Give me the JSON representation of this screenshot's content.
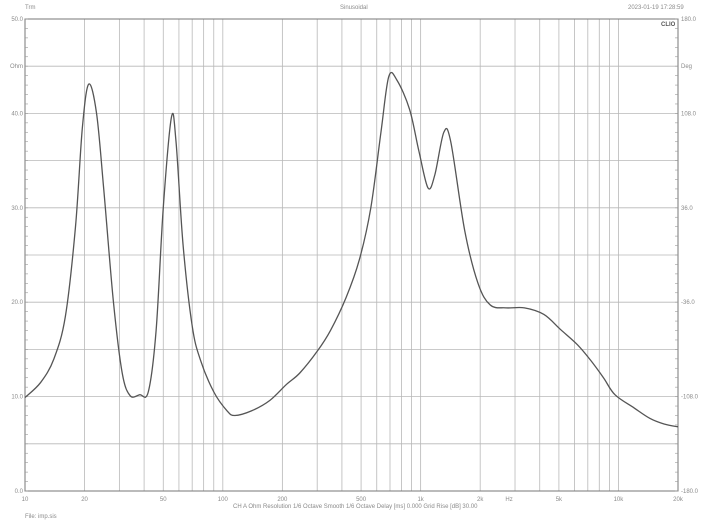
{
  "header": {
    "left_label": "Trm",
    "title": "Sinusoidal",
    "timestamp": "2023-01-19 17:28:59",
    "brand": "CLIO"
  },
  "footer": {
    "settings": "CH A   Ohm   Resolution 1/6 Octave   Smooth 1/6 Octave   Delay [ms] 0.000   Grid Rise [dB] 30.00",
    "file": "File: imp.sis"
  },
  "chart_data": {
    "type": "line",
    "title": "Sinusoidal",
    "xscale": "log",
    "xlim": [
      10,
      20000
    ],
    "ylim": [
      0,
      50
    ],
    "y2lim": [
      -180,
      180
    ],
    "grid": true,
    "ylabel": "Ohm",
    "y2label": "Deg",
    "x_tick_labels": [
      {
        "value": 10,
        "label": "10"
      },
      {
        "value": 20,
        "label": "20"
      },
      {
        "value": 50,
        "label": "50"
      },
      {
        "value": 100,
        "label": "100"
      },
      {
        "value": 200,
        "label": "200"
      },
      {
        "value": 500,
        "label": "500"
      },
      {
        "value": 1000,
        "label": "1k"
      },
      {
        "value": 2000,
        "label": "2k"
      },
      {
        "value": 2800,
        "label": "Hz"
      },
      {
        "value": 5000,
        "label": "5k"
      },
      {
        "value": 10000,
        "label": "10k"
      },
      {
        "value": 20000,
        "label": "20k"
      }
    ],
    "y_tick_labels": [
      {
        "value": 50,
        "label": "50.0"
      },
      {
        "value": 45,
        "label": "Ohm"
      },
      {
        "value": 40,
        "label": "40.0"
      },
      {
        "value": 30,
        "label": "30.0"
      },
      {
        "value": 20,
        "label": "20.0"
      },
      {
        "value": 10,
        "label": "10.0"
      },
      {
        "value": 0,
        "label": "0.0"
      }
    ],
    "y2_tick_labels": [
      {
        "value": 180,
        "label": "180.0"
      },
      {
        "value": 144,
        "label": "Deg"
      },
      {
        "value": 108,
        "label": "108.0"
      },
      {
        "value": 36,
        "label": "36.0"
      },
      {
        "value": -36,
        "label": "-36.0"
      },
      {
        "value": -108,
        "label": "-108.0"
      },
      {
        "value": -180,
        "label": "-180.0"
      }
    ],
    "series": [
      {
        "color": "#555555",
        "points": [
          [
            10,
            9.9
          ],
          [
            12,
            11.5
          ],
          [
            14,
            14.0
          ],
          [
            16,
            18.5
          ],
          [
            18,
            28.0
          ],
          [
            19.5,
            38.5
          ],
          [
            21,
            43.1
          ],
          [
            23,
            40.0
          ],
          [
            25,
            32.0
          ],
          [
            28,
            20.0
          ],
          [
            31,
            12.5
          ],
          [
            34,
            10.1
          ],
          [
            38,
            10.2
          ],
          [
            42,
            10.5
          ],
          [
            46,
            17.0
          ],
          [
            50,
            30.0
          ],
          [
            55,
            39.6
          ],
          [
            58,
            37.0
          ],
          [
            63,
            26.0
          ],
          [
            70,
            17.5
          ],
          [
            77,
            13.9
          ],
          [
            90,
            10.5
          ],
          [
            105,
            8.5
          ],
          [
            115,
            8.0
          ],
          [
            140,
            8.5
          ],
          [
            173,
            9.6
          ],
          [
            210,
            11.3
          ],
          [
            245,
            12.5
          ],
          [
            300,
            14.8
          ],
          [
            350,
            17.0
          ],
          [
            420,
            20.5
          ],
          [
            490,
            24.5
          ],
          [
            560,
            30.0
          ],
          [
            630,
            38.0
          ],
          [
            690,
            43.9
          ],
          [
            760,
            43.5
          ],
          [
            880,
            40.4
          ],
          [
            980,
            36.0
          ],
          [
            1090,
            32.1
          ],
          [
            1180,
            33.5
          ],
          [
            1310,
            38.0
          ],
          [
            1420,
            37.0
          ],
          [
            1670,
            27.6
          ],
          [
            1950,
            22.0
          ],
          [
            2250,
            19.7
          ],
          [
            2700,
            19.4
          ],
          [
            3350,
            19.4
          ],
          [
            4200,
            18.7
          ],
          [
            5100,
            17.1
          ],
          [
            6200,
            15.5
          ],
          [
            7200,
            13.9
          ],
          [
            8400,
            12.0
          ],
          [
            9600,
            10.2
          ],
          [
            12000,
            8.8
          ],
          [
            14400,
            7.7
          ],
          [
            17000,
            7.1
          ],
          [
            20000,
            6.8
          ]
        ]
      }
    ]
  }
}
